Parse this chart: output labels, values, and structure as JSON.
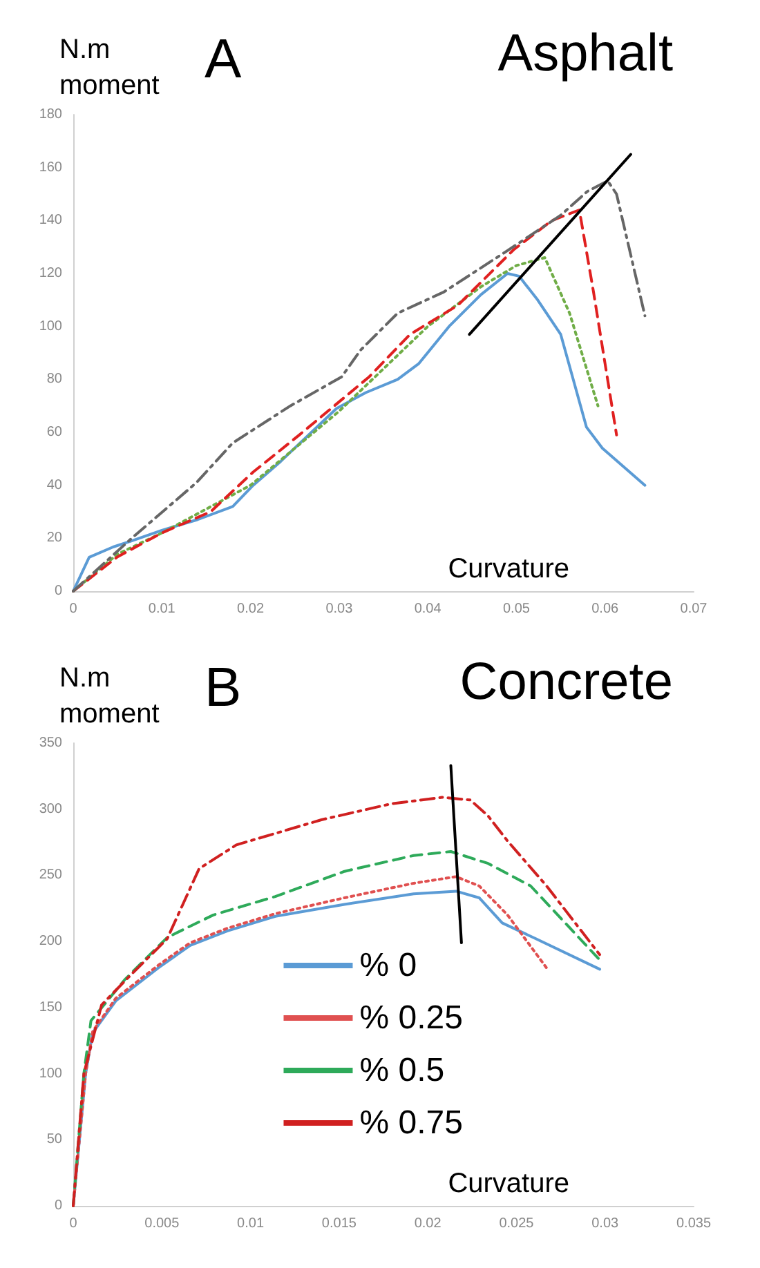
{
  "chart_data": [
    {
      "type": "line",
      "title": "A",
      "xlabel": "Curvature",
      "ylabel": "N.m\nmoment",
      "annotations": [
        "Asphalt"
      ],
      "xlim": [
        0,
        0.07
      ],
      "ylim": [
        0,
        180
      ],
      "xticks": [
        0,
        0.01,
        0.02,
        0.03,
        0.04,
        0.05,
        0.06,
        0.07
      ],
      "yticks": [
        0,
        20,
        40,
        60,
        80,
        100,
        120,
        140,
        160,
        180
      ],
      "grid": false,
      "legend": false,
      "marker": "none",
      "series": [
        {
          "color": "#5b9bd5",
          "line_style": "solid",
          "x": [
            0,
            0.0018,
            0.0045,
            0.0066,
            0.01,
            0.014,
            0.018,
            0.0203,
            0.0234,
            0.0297,
            0.033,
            0.0366,
            0.039,
            0.0424,
            0.046,
            0.049,
            0.0503,
            0.0524,
            0.055,
            0.0579,
            0.0597,
            0.0645
          ],
          "values": [
            0,
            12.8,
            16.7,
            19,
            23,
            27,
            32,
            40,
            49,
            69,
            75,
            80,
            86,
            100,
            112,
            120,
            119,
            110,
            97,
            62,
            54,
            40
          ]
        },
        {
          "color": "#70ad47",
          "line_style": "dotted",
          "x": [
            0,
            0.005,
            0.01,
            0.02,
            0.03,
            0.04,
            0.046,
            0.05,
            0.0532,
            0.056,
            0.0592
          ],
          "values": [
            0,
            14,
            22,
            40,
            68,
            100,
            115,
            123,
            126,
            105,
            70
          ]
        },
        {
          "color": "#e02020",
          "line_style": "dashed",
          "x": [
            0,
            0.005,
            0.01,
            0.0155,
            0.0203,
            0.0255,
            0.0334,
            0.038,
            0.0434,
            0.0497,
            0.054,
            0.0571,
            0.0587,
            0.0613
          ],
          "values": [
            0,
            13,
            22,
            30,
            45,
            59,
            81,
            97,
            108,
            129,
            140,
            144,
            113,
            59
          ]
        },
        {
          "color": "#666666",
          "line_style": "dashdot",
          "x": [
            0,
            0.0066,
            0.0139,
            0.018,
            0.0245,
            0.0303,
            0.0324,
            0.0366,
            0.0418,
            0.0487,
            0.055,
            0.058,
            0.0603,
            0.0613,
            0.0645
          ],
          "values": [
            0,
            20,
            41,
            56,
            70,
            81,
            91,
            105,
            113,
            128,
            142,
            151,
            155,
            150,
            104
          ]
        },
        {
          "color": "#000000",
          "line_style": "solid",
          "x": [
            0.0447,
            0.0629
          ],
          "values": [
            97,
            165
          ]
        }
      ]
    },
    {
      "type": "line",
      "title": "B",
      "xlabel": "Curvature",
      "ylabel": "N.m\nmoment",
      "annotations": [
        "Concrete"
      ],
      "xlim": [
        0,
        0.035
      ],
      "ylim": [
        0,
        350
      ],
      "xticks": [
        0,
        0.005,
        0.01,
        0.015,
        0.02,
        0.025,
        0.03,
        0.035
      ],
      "yticks": [
        0,
        50,
        100,
        150,
        200,
        250,
        300,
        350
      ],
      "grid": false,
      "legend": "bottom",
      "marker": "none",
      "series": [
        {
          "name": "% 0",
          "color": "#5b9bd5",
          "line_style": "solid",
          "x": [
            0,
            0.0007,
            0.0011,
            0.0024,
            0.0048,
            0.0066,
            0.0087,
            0.0114,
            0.0153,
            0.0192,
            0.0216,
            0.0229,
            0.0242,
            0.0261,
            0.0297
          ],
          "values": [
            0,
            100,
            131,
            155,
            180,
            197,
            208,
            219,
            228,
            236,
            238,
            233,
            214,
            202,
            179
          ]
        },
        {
          "name": "% 0.25",
          "color": "#e05050",
          "line_style": "dotted",
          "x": [
            0,
            0.0007,
            0.0011,
            0.0024,
            0.0048,
            0.0066,
            0.0087,
            0.0114,
            0.0153,
            0.0192,
            0.0216,
            0.0229,
            0.0245,
            0.0267
          ],
          "values": [
            0,
            100,
            132,
            157,
            182,
            199,
            210,
            221,
            233,
            244,
            249,
            242,
            220,
            180
          ]
        },
        {
          "name": "% 0.5",
          "color": "#2eaa5a",
          "line_style": "dashed",
          "x": [
            0,
            0.0006,
            0.001,
            0.0029,
            0.0053,
            0.0079,
            0.0114,
            0.0153,
            0.0192,
            0.0213,
            0.0234,
            0.0258,
            0.0297
          ],
          "values": [
            0,
            100,
            140,
            171,
            203,
            220,
            234,
            253,
            265,
            268,
            259,
            242,
            186
          ]
        },
        {
          "name": "% 0.75",
          "color": "#d02020",
          "line_style": "dashdot",
          "x": [
            0,
            0.0006,
            0.0016,
            0.0032,
            0.0053,
            0.0071,
            0.0092,
            0.014,
            0.0179,
            0.0208,
            0.0224,
            0.0234,
            0.0245,
            0.0267,
            0.0297
          ],
          "values": [
            0,
            100,
            152,
            174,
            202,
            255,
            273,
            292,
            304,
            309,
            307,
            295,
            276,
            242,
            190
          ]
        },
        {
          "color": "#000000",
          "line_style": "solid",
          "x": [
            0.0213,
            0.0219
          ],
          "values": [
            333,
            199
          ]
        }
      ]
    }
  ]
}
